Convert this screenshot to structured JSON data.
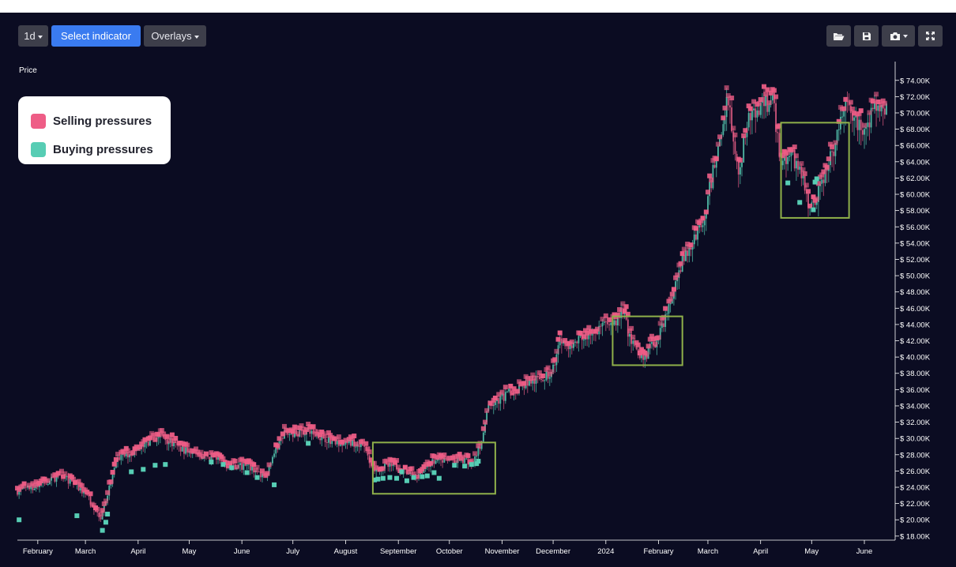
{
  "toolbar": {
    "interval_label": "1d",
    "indicator_label": "Select indicator",
    "overlays_label": "Overlays",
    "icons": [
      "folder-open-icon",
      "save-icon",
      "camera-icon",
      "fullscreen-icon"
    ]
  },
  "colors": {
    "background": "#0b0c22",
    "selling": "#ee5d86",
    "buying": "#57cdb4",
    "highlight_box": "#8fb04a",
    "candle_up": "#4fb7a4",
    "candle_down": "#d0557c"
  },
  "chart_data": {
    "type": "candlestick",
    "ylabel": "Price",
    "ylim": [
      17500,
      76500
    ],
    "y_ticks": [
      18000,
      20000,
      22000,
      24000,
      26000,
      28000,
      30000,
      32000,
      34000,
      36000,
      38000,
      40000,
      42000,
      44000,
      46000,
      48000,
      50000,
      52000,
      54000,
      56000,
      58000,
      60000,
      62000,
      64000,
      66000,
      68000,
      70000,
      72000,
      74000
    ],
    "y_tick_labels": [
      "$ 18.00K",
      "$ 20.00K",
      "$ 22.00K",
      "$ 24.00K",
      "$ 26.00K",
      "$ 28.00K",
      "$ 30.00K",
      "$ 32.00K",
      "$ 34.00K",
      "$ 36.00K",
      "$ 38.00K",
      "$ 40.00K",
      "$ 42.00K",
      "$ 44.00K",
      "$ 46.00K",
      "$ 48.00K",
      "$ 50.00K",
      "$ 52.00K",
      "$ 54.00K",
      "$ 56.00K",
      "$ 58.00K",
      "$ 60.00K",
      "$ 62.00K",
      "$ 64.00K",
      "$ 66.00K",
      "$ 68.00K",
      "$ 70.00K",
      "$ 72.00K",
      "$ 74.00K"
    ],
    "x_range": [
      "2023-01-20",
      "2024-06-14"
    ],
    "x_ticks": [
      "2023-02-01",
      "2023-03-01",
      "2023-04-01",
      "2023-05-01",
      "2023-06-01",
      "2023-07-01",
      "2023-08-01",
      "2023-09-01",
      "2023-10-01",
      "2023-11-01",
      "2023-12-01",
      "2024-01-01",
      "2024-02-01",
      "2024-03-01",
      "2024-04-01",
      "2024-05-01",
      "2024-06-01"
    ],
    "x_tick_labels": [
      "February",
      "March",
      "April",
      "May",
      "June",
      "July",
      "August",
      "September",
      "October",
      "November",
      "December",
      "2024",
      "February",
      "March",
      "April",
      "May",
      "June"
    ],
    "price_path": [
      [
        "2023-01-20",
        23500
      ],
      [
        "2023-02-01",
        24200
      ],
      [
        "2023-02-15",
        25500
      ],
      [
        "2023-03-01",
        23200
      ],
      [
        "2023-03-10",
        20300
      ],
      [
        "2023-03-20",
        27500
      ],
      [
        "2023-04-01",
        28600
      ],
      [
        "2023-04-14",
        30400
      ],
      [
        "2023-04-25",
        28800
      ],
      [
        "2023-05-10",
        27800
      ],
      [
        "2023-05-25",
        26700
      ],
      [
        "2023-06-05",
        26500
      ],
      [
        "2023-06-15",
        25300
      ],
      [
        "2023-06-25",
        30500
      ],
      [
        "2023-07-10",
        30900
      ],
      [
        "2023-07-25",
        29600
      ],
      [
        "2023-08-10",
        29400
      ],
      [
        "2023-08-17",
        26400
      ],
      [
        "2023-08-30",
        26600
      ],
      [
        "2023-09-11",
        25300
      ],
      [
        "2023-09-20",
        27100
      ],
      [
        "2023-10-01",
        27400
      ],
      [
        "2023-10-15",
        27000
      ],
      [
        "2023-10-20",
        29500
      ],
      [
        "2023-10-24",
        34000
      ],
      [
        "2023-11-01",
        35000
      ],
      [
        "2023-11-15",
        36800
      ],
      [
        "2023-11-30",
        37800
      ],
      [
        "2023-12-05",
        42000
      ],
      [
        "2023-12-12",
        41500
      ],
      [
        "2023-12-25",
        43200
      ],
      [
        "2024-01-05",
        44000
      ],
      [
        "2024-01-11",
        46000
      ],
      [
        "2024-01-14",
        42800
      ],
      [
        "2024-01-23",
        39800
      ],
      [
        "2024-02-01",
        42500
      ],
      [
        "2024-02-09",
        47000
      ],
      [
        "2024-02-15",
        51800
      ],
      [
        "2024-02-28",
        57000
      ],
      [
        "2024-03-05",
        64000
      ],
      [
        "2024-03-13",
        71800
      ],
      [
        "2024-03-19",
        63000
      ],
      [
        "2024-03-26",
        70000
      ],
      [
        "2024-04-08",
        71500
      ],
      [
        "2024-04-13",
        64000
      ],
      [
        "2024-04-20",
        64800
      ],
      [
        "2024-05-01",
        58200
      ],
      [
        "2024-05-15",
        66000
      ],
      [
        "2024-05-21",
        71000
      ],
      [
        "2024-06-01",
        67600
      ],
      [
        "2024-06-07",
        70800
      ],
      [
        "2024-06-14",
        70500
      ]
    ],
    "series": [
      {
        "name": "Selling pressures"
      },
      {
        "name": "Buying pressures"
      }
    ],
    "buying_points": [
      [
        "2023-01-21",
        20000
      ],
      [
        "2023-02-24",
        20500
      ],
      [
        "2023-03-11",
        18700
      ],
      [
        "2023-03-13",
        19700
      ],
      [
        "2023-03-14",
        20700
      ],
      [
        "2023-03-28",
        25900
      ],
      [
        "2023-04-04",
        26200
      ],
      [
        "2023-04-11",
        26700
      ],
      [
        "2023-04-17",
        26800
      ],
      [
        "2023-05-14",
        27100
      ],
      [
        "2023-05-21",
        26800
      ],
      [
        "2023-05-26",
        26400
      ],
      [
        "2023-06-04",
        25800
      ],
      [
        "2023-06-10",
        25200
      ],
      [
        "2023-06-20",
        24300
      ],
      [
        "2023-07-10",
        29400
      ],
      [
        "2023-08-18",
        24900
      ],
      [
        "2023-08-20",
        25000
      ],
      [
        "2023-08-23",
        25100
      ],
      [
        "2023-08-27",
        25200
      ],
      [
        "2023-08-31",
        25100
      ],
      [
        "2023-09-03",
        25900
      ],
      [
        "2023-09-06",
        24800
      ],
      [
        "2023-09-10",
        25200
      ],
      [
        "2023-09-15",
        25300
      ],
      [
        "2023-09-18",
        25400
      ],
      [
        "2023-09-22",
        25800
      ],
      [
        "2023-09-25",
        25100
      ],
      [
        "2023-10-04",
        26700
      ],
      [
        "2023-10-10",
        26600
      ],
      [
        "2023-10-14",
        26800
      ],
      [
        "2023-10-17",
        26900
      ],
      [
        "2023-10-18",
        27200
      ],
      [
        "2024-04-17",
        61400
      ],
      [
        "2024-04-24",
        59000
      ],
      [
        "2024-05-02",
        58100
      ],
      [
        "2024-05-03",
        61500
      ],
      [
        "2024-05-04",
        61900
      ]
    ],
    "annotations": [
      {
        "type": "highlight-box",
        "x": [
          "2023-08-17",
          "2023-10-28"
        ],
        "y": [
          23200,
          29500
        ]
      },
      {
        "type": "highlight-box",
        "x": [
          "2024-01-05",
          "2024-02-15"
        ],
        "y": [
          39000,
          45000
        ]
      },
      {
        "type": "highlight-box",
        "x": [
          "2024-04-13",
          "2024-05-23"
        ],
        "y": [
          57100,
          68800
        ]
      }
    ],
    "legend_position": "top-left",
    "grid": false
  }
}
